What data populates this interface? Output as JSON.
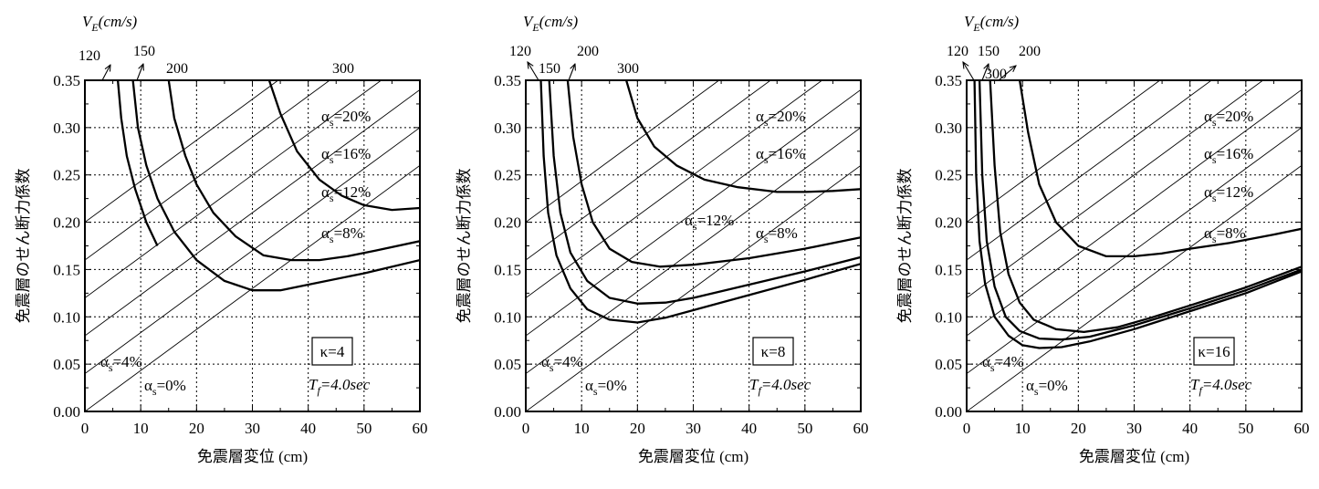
{
  "chart_data": [
    {
      "type": "line",
      "kappa": "κ=4",
      "period": {
        "main": "T",
        "sub": "f",
        "rest": "=4.0sec"
      },
      "ve_header": {
        "main": "V",
        "sub": "E",
        "rest": "(cm/s)"
      },
      "ylabel": "免震層のせん断力係数",
      "xlabel": "免震層変位 (cm)",
      "xlim": [
        0,
        60
      ],
      "ylim": [
        0,
        0.35
      ],
      "xticks": [
        "0",
        "10",
        "20",
        "30",
        "40",
        "50",
        "60"
      ],
      "yticks": [
        "0.00",
        "0.05",
        "0.10",
        "0.15",
        "0.20",
        "0.25",
        "0.30",
        "0.35"
      ],
      "grid": true,
      "alpha_lines": [
        {
          "label": "=0%",
          "alpha": 0.0
        },
        {
          "label": "=4%",
          "alpha": 0.04
        },
        {
          "label": "=8%",
          "alpha": 0.08
        },
        {
          "label": "=12%",
          "alpha": 0.12
        },
        {
          "label": "=16%",
          "alpha": 0.16
        },
        {
          "label": "=20%",
          "alpha": 0.2
        }
      ],
      "series": [
        {
          "name": "120",
          "x": [
            5.9,
            6.5,
            7.5,
            9,
            11,
            13
          ],
          "y": [
            0.35,
            0.31,
            0.27,
            0.235,
            0.2,
            0.175
          ]
        },
        {
          "name": "150",
          "x": [
            8.6,
            9.5,
            11,
            13,
            16,
            20,
            25,
            30,
            35,
            40,
            50,
            60
          ],
          "y": [
            0.35,
            0.3,
            0.26,
            0.225,
            0.19,
            0.16,
            0.138,
            0.128,
            0.128,
            0.134,
            0.146,
            0.16
          ]
        },
        {
          "name": "200",
          "x": [
            15,
            16,
            18,
            20,
            23,
            27,
            32,
            37,
            42,
            47,
            52,
            60
          ],
          "y": [
            0.35,
            0.31,
            0.27,
            0.24,
            0.21,
            0.185,
            0.165,
            0.16,
            0.16,
            0.164,
            0.17,
            0.18
          ]
        },
        {
          "name": "300",
          "x": [
            33,
            35,
            38,
            42,
            46,
            50,
            55,
            60
          ],
          "y": [
            0.35,
            0.315,
            0.275,
            0.245,
            0.228,
            0.218,
            0.213,
            0.215
          ]
        }
      ],
      "curve_labels": [
        "120",
        "150",
        "200",
        "300"
      ]
    },
    {
      "type": "line",
      "kappa": "κ=8",
      "period": {
        "main": "T",
        "sub": "f",
        "rest": "=4.0sec"
      },
      "ve_header": {
        "main": "V",
        "sub": "E",
        "rest": "(cm/s)"
      },
      "ylabel": "免震層のせん断力係数",
      "xlabel": "免震層変位 (cm)",
      "xlim": [
        0,
        60
      ],
      "ylim": [
        0,
        0.35
      ],
      "xticks": [
        "0",
        "10",
        "20",
        "30",
        "40",
        "50",
        "60"
      ],
      "yticks": [
        "0.00",
        "0.05",
        "0.10",
        "0.15",
        "0.20",
        "0.25",
        "0.30",
        "0.35"
      ],
      "grid": true,
      "alpha_lines": [
        {
          "label": "=0%",
          "alpha": 0.0
        },
        {
          "label": "=4%",
          "alpha": 0.04
        },
        {
          "label": "=8%",
          "alpha": 0.08
        },
        {
          "label": "=12%",
          "alpha": 0.12
        },
        {
          "label": "=16%",
          "alpha": 0.16
        },
        {
          "label": "=20%",
          "alpha": 0.2
        }
      ],
      "series": [
        {
          "name": "120",
          "x": [
            2.7,
            3.2,
            4,
            5.5,
            8,
            11,
            15,
            20,
            25,
            30,
            40,
            50,
            60
          ],
          "y": [
            0.35,
            0.27,
            0.21,
            0.165,
            0.13,
            0.108,
            0.097,
            0.094,
            0.099,
            0.107,
            0.123,
            0.139,
            0.156
          ]
        },
        {
          "name": "150",
          "x": [
            4.2,
            5,
            6.2,
            8,
            11,
            15,
            20,
            25,
            30,
            40,
            50,
            60
          ],
          "y": [
            0.35,
            0.27,
            0.21,
            0.168,
            0.138,
            0.12,
            0.114,
            0.115,
            0.12,
            0.134,
            0.148,
            0.163
          ]
        },
        {
          "name": "200",
          "x": [
            7.5,
            8.5,
            10,
            12,
            15,
            19,
            24,
            30,
            40,
            50,
            60
          ],
          "y": [
            0.35,
            0.29,
            0.24,
            0.2,
            0.172,
            0.158,
            0.153,
            0.155,
            0.162,
            0.172,
            0.184
          ]
        },
        {
          "name": "300",
          "x": [
            18,
            20,
            23,
            27,
            32,
            38,
            45,
            50,
            55,
            60
          ],
          "y": [
            0.35,
            0.31,
            0.28,
            0.26,
            0.245,
            0.237,
            0.232,
            0.232,
            0.233,
            0.235
          ]
        }
      ],
      "curve_labels": [
        "120",
        "150",
        "200",
        "300"
      ]
    },
    {
      "type": "line",
      "kappa": "κ=16",
      "period": {
        "main": "T",
        "sub": "f",
        "rest": "=4.0sec"
      },
      "ve_header": {
        "main": "V",
        "sub": "E",
        "rest": "(cm/s)"
      },
      "ylabel": "免震層のせん断力係数",
      "xlabel": "免震層変位 (cm)",
      "xlim": [
        0,
        60
      ],
      "ylim": [
        0,
        0.35
      ],
      "xticks": [
        "0",
        "10",
        "20",
        "30",
        "40",
        "50",
        "60"
      ],
      "yticks": [
        "0.00",
        "0.05",
        "0.10",
        "0.15",
        "0.20",
        "0.25",
        "0.30",
        "0.35"
      ],
      "grid": true,
      "alpha_lines": [
        {
          "label": "=0%",
          "alpha": 0.0
        },
        {
          "label": "=4%",
          "alpha": 0.04
        },
        {
          "label": "=8%",
          "alpha": 0.08
        },
        {
          "label": "=12%",
          "alpha": 0.12
        },
        {
          "label": "=16%",
          "alpha": 0.16
        },
        {
          "label": "=20%",
          "alpha": 0.2
        }
      ],
      "series": [
        {
          "name": "120",
          "x": [
            1.4,
            1.7,
            2.3,
            3.3,
            5,
            7.5,
            10,
            13,
            17,
            22,
            30,
            40,
            50,
            60
          ],
          "y": [
            0.35,
            0.25,
            0.18,
            0.135,
            0.1,
            0.08,
            0.07,
            0.067,
            0.068,
            0.074,
            0.087,
            0.106,
            0.125,
            0.148
          ]
        },
        {
          "name": "150",
          "x": [
            2.3,
            2.8,
            3.6,
            5,
            7,
            9.5,
            13,
            17,
            22,
            30,
            40,
            50,
            60
          ],
          "y": [
            0.35,
            0.25,
            0.18,
            0.132,
            0.1,
            0.085,
            0.077,
            0.076,
            0.079,
            0.091,
            0.109,
            0.128,
            0.15
          ]
        },
        {
          "name": "200",
          "x": [
            4.2,
            5,
            6,
            7.5,
            9.5,
            12,
            16,
            21,
            27,
            33,
            40,
            50,
            60
          ],
          "y": [
            0.35,
            0.26,
            0.19,
            0.145,
            0.115,
            0.097,
            0.087,
            0.084,
            0.089,
            0.099,
            0.112,
            0.131,
            0.153
          ]
        },
        {
          "name": "300",
          "x": [
            9.5,
            11,
            13,
            16,
            20,
            25,
            30,
            35,
            40,
            47,
            55,
            60
          ],
          "y": [
            0.35,
            0.295,
            0.24,
            0.2,
            0.175,
            0.164,
            0.164,
            0.167,
            0.172,
            0.178,
            0.187,
            0.193
          ]
        }
      ],
      "curve_labels": [
        "120",
        "150",
        "200",
        "300"
      ]
    }
  ]
}
